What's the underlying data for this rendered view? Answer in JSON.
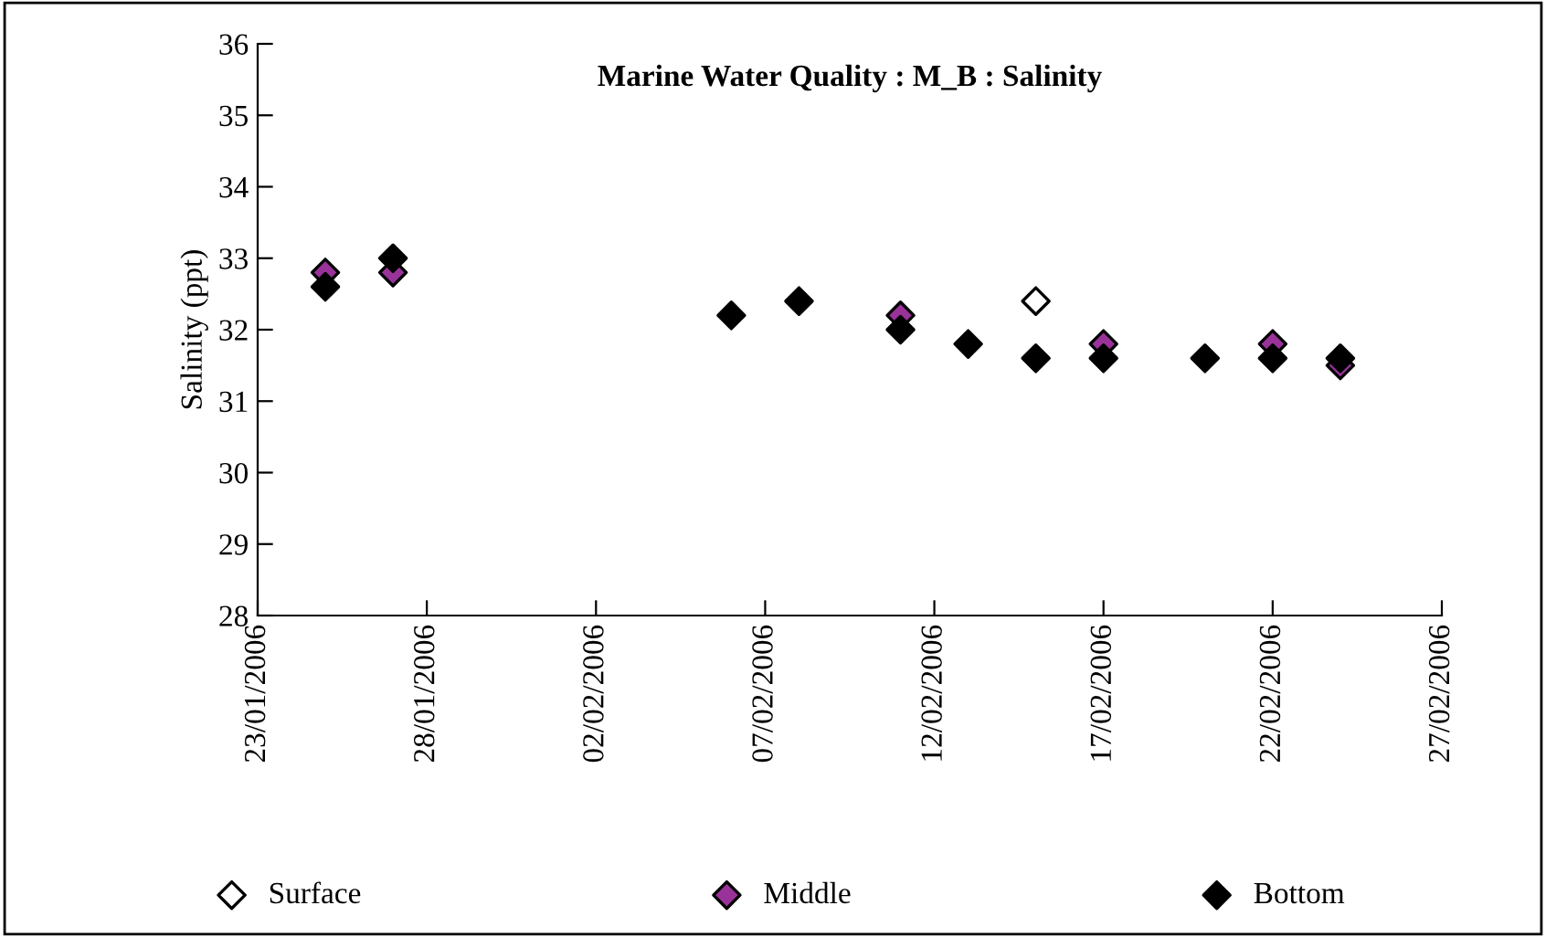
{
  "chart_data": {
    "type": "scatter",
    "title": "Marine Water Quality : M_B : Salinity",
    "ylabel": "Salinity (ppt)",
    "x": [
      "2006-01-25",
      "2006-01-27",
      "2006-02-06",
      "2006-02-08",
      "2006-02-11",
      "2006-02-13",
      "2006-02-15",
      "2006-02-17",
      "2006-02-20",
      "2006-02-22",
      "2006-02-24"
    ],
    "series": [
      {
        "name": "Surface",
        "color": "#ffffff",
        "values": [
          null,
          null,
          null,
          null,
          null,
          null,
          32.4,
          null,
          null,
          null,
          null
        ]
      },
      {
        "name": "Middle",
        "color": "#993399",
        "values": [
          32.8,
          32.8,
          null,
          null,
          32.2,
          null,
          null,
          31.8,
          null,
          31.8,
          31.5
        ]
      },
      {
        "name": "Bottom",
        "color": "#000000",
        "values": [
          32.6,
          33.0,
          32.2,
          32.4,
          32.0,
          31.8,
          31.6,
          31.6,
          31.6,
          31.6,
          31.6
        ]
      }
    ],
    "xlim": [
      "2006-01-23",
      "2006-02-27"
    ],
    "xticks": [
      {
        "value": "2006-01-23",
        "label": "23/01/2006"
      },
      {
        "value": "2006-01-28",
        "label": "28/01/2006"
      },
      {
        "value": "2006-02-02",
        "label": "02/02/2006"
      },
      {
        "value": "2006-02-07",
        "label": "07/02/2006"
      },
      {
        "value": "2006-02-12",
        "label": "12/02/2006"
      },
      {
        "value": "2006-02-17",
        "label": "17/02/2006"
      },
      {
        "value": "2006-02-22",
        "label": "22/02/2006"
      },
      {
        "value": "2006-02-27",
        "label": "27/02/2006"
      }
    ],
    "ylim": [
      28,
      36
    ],
    "yticks": [
      28,
      29,
      30,
      31,
      32,
      33,
      34,
      35,
      36
    ],
    "marker": "diamond",
    "grid": false,
    "legend": "bottom"
  }
}
